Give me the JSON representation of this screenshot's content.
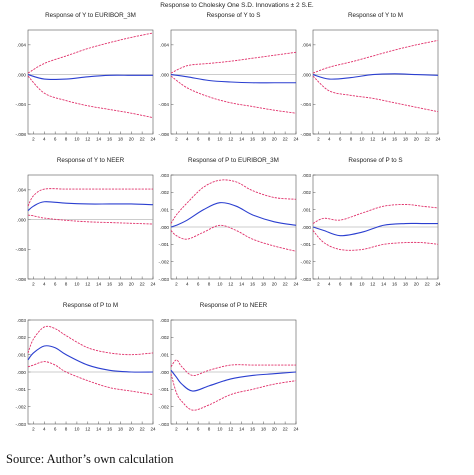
{
  "figure": {
    "title": "Response to Cholesky One S.D. Innovations ± 2 S.E.",
    "source": "Source: Author’s own calculation"
  },
  "colors": {
    "response": "#2b3fd0",
    "band": "#e0306a",
    "zero": "#9a9a9a",
    "frame": "#555555",
    "grid": "#d8d8d8",
    "text": "#222222"
  },
  "chart_data": [
    {
      "type": "line",
      "title": "Response of Y to EURIBOR_3M",
      "x": [
        1,
        4,
        8,
        12,
        16,
        20,
        24
      ],
      "xticks": [
        2,
        4,
        6,
        8,
        10,
        12,
        14,
        16,
        18,
        20,
        22,
        24
      ],
      "ylim": [
        -0.008,
        0.006
      ],
      "yticks": [
        0.004,
        0.0,
        -0.004,
        -0.008
      ],
      "ytick_labels": [
        ".004",
        ".000",
        "-.004",
        "-.008"
      ],
      "series": [
        {
          "role": "response",
          "values": [
            0.0,
            -0.0006,
            -0.0006,
            -0.0003,
            -0.0001,
            -0.0001,
            -0.0001
          ]
        },
        {
          "role": "upper",
          "values": [
            0.0002,
            0.0015,
            0.0025,
            0.0035,
            0.0043,
            0.005,
            0.0056
          ]
        },
        {
          "role": "lower",
          "values": [
            -0.0002,
            -0.0025,
            -0.0035,
            -0.0042,
            -0.0047,
            -0.0052,
            -0.0058
          ]
        }
      ]
    },
    {
      "type": "line",
      "title": "Response of Y to S",
      "x": [
        1,
        4,
        8,
        12,
        16,
        20,
        24
      ],
      "xticks": [
        2,
        4,
        6,
        8,
        10,
        12,
        14,
        16,
        18,
        20,
        22,
        24
      ],
      "ylim": [
        -0.008,
        0.006
      ],
      "yticks": [
        0.004,
        0.0,
        -0.004,
        -0.008
      ],
      "ytick_labels": [
        ".004",
        ".000",
        "-.004",
        "-.008"
      ],
      "series": [
        {
          "role": "response",
          "values": [
            0.0,
            -0.0003,
            -0.0008,
            -0.001,
            -0.0011,
            -0.0011,
            -0.0011
          ]
        },
        {
          "role": "upper",
          "values": [
            0.0002,
            0.0012,
            0.0015,
            0.0018,
            0.0022,
            0.0026,
            0.003
          ]
        },
        {
          "role": "lower",
          "values": [
            -0.0002,
            -0.0018,
            -0.003,
            -0.0038,
            -0.0043,
            -0.0048,
            -0.0052
          ]
        }
      ]
    },
    {
      "type": "line",
      "title": "Response of Y to M",
      "x": [
        1,
        4,
        8,
        12,
        16,
        20,
        24
      ],
      "xticks": [
        2,
        4,
        6,
        8,
        10,
        12,
        14,
        16,
        18,
        20,
        22,
        24
      ],
      "ylim": [
        -0.008,
        0.006
      ],
      "yticks": [
        0.004,
        0.0,
        -0.004,
        -0.008
      ],
      "ytick_labels": [
        ".004",
        ".000",
        "-.004",
        "-.008"
      ],
      "series": [
        {
          "role": "response",
          "values": [
            0.0,
            -0.0006,
            -0.0004,
            0.0,
            0.0001,
            0.0,
            -0.0001
          ]
        },
        {
          "role": "upper",
          "values": [
            0.0002,
            0.001,
            0.0017,
            0.0025,
            0.0033,
            0.004,
            0.0046
          ]
        },
        {
          "role": "lower",
          "values": [
            -0.0002,
            -0.0022,
            -0.0028,
            -0.0032,
            -0.0038,
            -0.0044,
            -0.005
          ]
        }
      ]
    },
    {
      "type": "line",
      "title": "Response of Y to NEER",
      "x": [
        1,
        2,
        4,
        8,
        12,
        16,
        20,
        24
      ],
      "xticks": [
        2,
        4,
        6,
        8,
        10,
        12,
        14,
        16,
        18,
        20,
        22,
        24
      ],
      "ylim": [
        -0.008,
        0.006
      ],
      "yticks": [
        0.004,
        0.0,
        -0.004,
        -0.008
      ],
      "ytick_labels": [
        ".004",
        ".000",
        "-.004",
        "-.008"
      ],
      "series": [
        {
          "role": "response",
          "values": [
            0.0012,
            0.0018,
            0.0024,
            0.0022,
            0.0021,
            0.0021,
            0.0021,
            0.002
          ]
        },
        {
          "role": "upper",
          "values": [
            0.0018,
            0.0032,
            0.0041,
            0.0041,
            0.0041,
            0.0041,
            0.0041,
            0.0041
          ]
        },
        {
          "role": "lower",
          "values": [
            0.0006,
            0.0005,
            0.0002,
            -0.0001,
            -0.0003,
            -0.0004,
            -0.0005,
            -0.0006
          ]
        }
      ]
    },
    {
      "type": "line",
      "title": "Response of P to EURIBOR_3M",
      "x": [
        1,
        2,
        4,
        7,
        10,
        13,
        16,
        20,
        24
      ],
      "xticks": [
        2,
        4,
        6,
        8,
        10,
        12,
        14,
        16,
        18,
        20,
        22,
        24
      ],
      "ylim": [
        -0.003,
        0.003
      ],
      "yticks": [
        0.003,
        0.002,
        0.001,
        0.0,
        -0.001,
        -0.002,
        -0.003
      ],
      "ytick_labels": [
        ".003",
        ".002",
        ".001",
        ".000",
        "-.001",
        "-.002",
        "-.003"
      ],
      "series": [
        {
          "role": "response",
          "values": [
            0.0,
            0.0001,
            0.0004,
            0.001,
            0.0014,
            0.0012,
            0.0007,
            0.0003,
            0.0001
          ]
        },
        {
          "role": "upper",
          "values": [
            0.0002,
            0.0007,
            0.0014,
            0.0023,
            0.0027,
            0.0026,
            0.0021,
            0.0017,
            0.0016
          ]
        },
        {
          "role": "lower",
          "values": [
            -0.0002,
            -0.0005,
            -0.0007,
            -0.0003,
            0.0001,
            -0.0002,
            -0.0007,
            -0.0011,
            -0.0014
          ]
        }
      ]
    },
    {
      "type": "line",
      "title": "Response of P to S",
      "x": [
        1,
        3,
        6,
        10,
        14,
        18,
        21,
        24
      ],
      "xticks": [
        2,
        4,
        6,
        8,
        10,
        12,
        14,
        16,
        18,
        20,
        22,
        24
      ],
      "ylim": [
        -0.003,
        0.003
      ],
      "yticks": [
        0.003,
        0.002,
        0.001,
        0.0,
        -0.001,
        -0.002,
        -0.003
      ],
      "ytick_labels": [
        ".003",
        ".002",
        ".001",
        ".000",
        "-.001",
        "-.002",
        "-.003"
      ],
      "series": [
        {
          "role": "response",
          "values": [
            0.0,
            -0.0002,
            -0.0005,
            -0.0003,
            0.0001,
            0.0002,
            0.0002,
            0.0002
          ]
        },
        {
          "role": "upper",
          "values": [
            0.0002,
            0.0005,
            0.0004,
            0.0008,
            0.0012,
            0.0013,
            0.0012,
            0.0011
          ]
        },
        {
          "role": "lower",
          "values": [
            -0.0002,
            -0.0009,
            -0.0013,
            -0.0013,
            -0.001,
            -0.0009,
            -0.0009,
            -0.001
          ]
        }
      ]
    },
    {
      "type": "line",
      "title": "Response of P to M",
      "x": [
        1,
        2,
        4,
        6,
        8,
        12,
        16,
        20,
        24
      ],
      "xticks": [
        2,
        4,
        6,
        8,
        10,
        12,
        14,
        16,
        18,
        20,
        22,
        24
      ],
      "ylim": [
        -0.003,
        0.003
      ],
      "yticks": [
        0.003,
        0.002,
        0.001,
        0.0,
        -0.001,
        -0.002,
        -0.003
      ],
      "ytick_labels": [
        ".003",
        ".002",
        ".001",
        ".000",
        "-.001",
        "-.002",
        "-.003"
      ],
      "series": [
        {
          "role": "response",
          "values": [
            0.0007,
            0.0011,
            0.0015,
            0.0014,
            0.001,
            0.0004,
            0.0001,
            0.0,
            0.0
          ]
        },
        {
          "role": "upper",
          "values": [
            0.0011,
            0.0019,
            0.0026,
            0.0025,
            0.0021,
            0.0014,
            0.0011,
            0.001,
            0.0011
          ]
        },
        {
          "role": "lower",
          "values": [
            0.0003,
            0.0004,
            0.0006,
            0.0004,
            0.0,
            -0.0005,
            -0.0009,
            -0.0011,
            -0.0013
          ]
        }
      ]
    },
    {
      "type": "line",
      "title": "Response of P to NEER",
      "x": [
        1,
        2,
        3,
        5,
        8,
        12,
        16,
        20,
        24
      ],
      "xticks": [
        2,
        4,
        6,
        8,
        10,
        12,
        14,
        16,
        18,
        20,
        22,
        24
      ],
      "ylim": [
        -0.003,
        0.003
      ],
      "yticks": [
        0.003,
        0.002,
        0.001,
        0.0,
        -0.001,
        -0.002,
        -0.003
      ],
      "ytick_labels": [
        ".003",
        ".002",
        ".001",
        ".000",
        "-.001",
        "-.002",
        "-.003"
      ],
      "series": [
        {
          "role": "response",
          "values": [
            0.0001,
            -0.0003,
            -0.0007,
            -0.0011,
            -0.0008,
            -0.0004,
            -0.0002,
            -0.0001,
            0.0
          ]
        },
        {
          "role": "upper",
          "values": [
            0.0003,
            0.0007,
            0.0003,
            -0.0002,
            0.0001,
            0.0004,
            0.0004,
            0.0004,
            0.0004
          ]
        },
        {
          "role": "lower",
          "values": [
            -0.0001,
            -0.0012,
            -0.0017,
            -0.0022,
            -0.0019,
            -0.0013,
            -0.001,
            -0.0007,
            -0.0005
          ]
        }
      ]
    }
  ]
}
